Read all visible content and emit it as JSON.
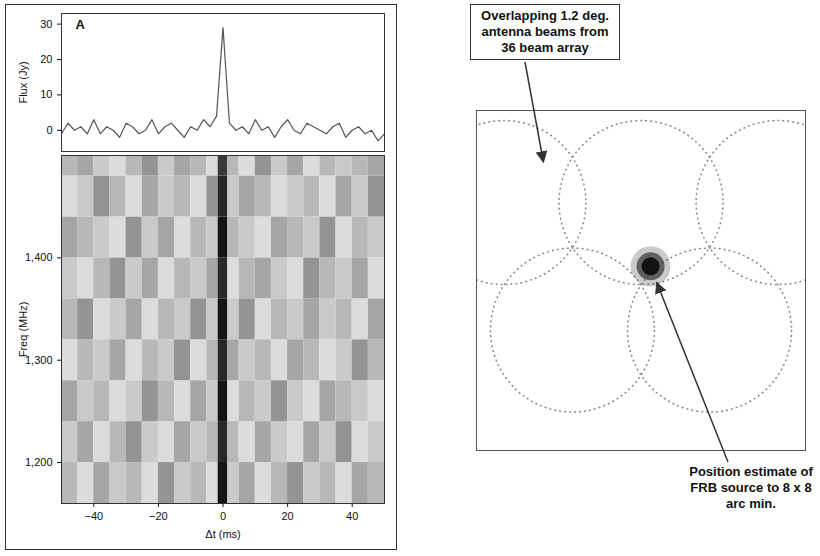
{
  "chart_data": [
    {
      "type": "line",
      "panel": "A",
      "y_label": "Flux (Jy)",
      "x": [
        -50,
        -48,
        -46,
        -44,
        -42,
        -40,
        -38,
        -36,
        -34,
        -32,
        -30,
        -28,
        -26,
        -24,
        -22,
        -20,
        -18,
        -16,
        -14,
        -12,
        -10,
        -8,
        -6,
        -4,
        -2,
        0,
        2,
        4,
        6,
        8,
        10,
        12,
        14,
        16,
        18,
        20,
        22,
        24,
        26,
        28,
        30,
        32,
        34,
        36,
        38,
        40,
        42,
        44,
        46,
        48,
        50
      ],
      "values": [
        -1,
        2,
        0,
        1,
        -1,
        3,
        -1,
        1,
        0,
        -2,
        2,
        1,
        -1,
        0,
        3,
        -1,
        1,
        2,
        0,
        -2,
        1,
        0,
        3,
        1,
        4,
        29,
        2,
        0,
        1,
        -1,
        3,
        0,
        1,
        -2,
        1,
        3,
        0,
        -1,
        2,
        1,
        0,
        -1,
        1,
        2,
        -2,
        0,
        1,
        -1,
        0,
        -3,
        -1
      ],
      "xlim": [
        -50,
        50
      ],
      "ylim": [
        -6,
        33
      ],
      "yticks": [
        0,
        10,
        20,
        30
      ],
      "tick_labels": "y",
      "color": "#555555"
    },
    {
      "type": "heatmap",
      "x_label": "Δt (ms)",
      "y_label": "Freq (MHz)",
      "x_bins": [
        -50,
        -45,
        -40,
        -35,
        -30,
        -25,
        -20,
        -15,
        -10,
        -5,
        -1.5,
        1.5,
        5,
        10,
        15,
        20,
        25,
        30,
        35,
        40,
        45,
        50
      ],
      "y_bins": [
        1160,
        1200,
        1240,
        1280,
        1320,
        1360,
        1400,
        1440,
        1480,
        1500
      ],
      "cells": [
        [
          0.5,
          0.4,
          0.55,
          0.45,
          0.5,
          0.4,
          0.6,
          0.45,
          0.5,
          0.4,
          0.95,
          0.45,
          0.55,
          0.4,
          0.5,
          0.6,
          0.45,
          0.5,
          0.4,
          0.55,
          0.5
        ],
        [
          0.45,
          0.55,
          0.4,
          0.5,
          0.6,
          0.45,
          0.4,
          0.55,
          0.45,
          0.5,
          0.9,
          0.5,
          0.4,
          0.55,
          0.45,
          0.4,
          0.55,
          0.45,
          0.6,
          0.4,
          0.45
        ],
        [
          0.55,
          0.45,
          0.5,
          0.4,
          0.45,
          0.6,
          0.5,
          0.4,
          0.55,
          0.45,
          0.95,
          0.4,
          0.5,
          0.45,
          0.6,
          0.45,
          0.4,
          0.55,
          0.5,
          0.45,
          0.4
        ],
        [
          0.4,
          0.5,
          0.45,
          0.55,
          0.4,
          0.5,
          0.45,
          0.6,
          0.4,
          0.5,
          0.9,
          0.55,
          0.45,
          0.5,
          0.4,
          0.55,
          0.5,
          0.4,
          0.45,
          0.6,
          0.5
        ],
        [
          0.5,
          0.6,
          0.4,
          0.45,
          0.55,
          0.4,
          0.5,
          0.45,
          0.6,
          0.45,
          0.95,
          0.45,
          0.6,
          0.4,
          0.5,
          0.45,
          0.55,
          0.45,
          0.5,
          0.4,
          0.55
        ],
        [
          0.45,
          0.4,
          0.5,
          0.6,
          0.45,
          0.55,
          0.4,
          0.5,
          0.45,
          0.55,
          0.9,
          0.4,
          0.5,
          0.55,
          0.45,
          0.4,
          0.6,
          0.5,
          0.45,
          0.55,
          0.4
        ],
        [
          0.55,
          0.5,
          0.45,
          0.4,
          0.6,
          0.45,
          0.55,
          0.4,
          0.5,
          0.45,
          0.95,
          0.5,
          0.45,
          0.4,
          0.55,
          0.5,
          0.45,
          0.6,
          0.4,
          0.5,
          0.45
        ],
        [
          0.4,
          0.45,
          0.6,
          0.5,
          0.4,
          0.55,
          0.45,
          0.5,
          0.4,
          0.6,
          0.9,
          0.45,
          0.55,
          0.5,
          0.4,
          0.45,
          0.5,
          0.4,
          0.55,
          0.45,
          0.6
        ],
        [
          0.5,
          0.55,
          0.45,
          0.4,
          0.5,
          0.6,
          0.45,
          0.55,
          0.5,
          0.4,
          0.85,
          0.5,
          0.4,
          0.6,
          0.45,
          0.55,
          0.4,
          0.5,
          0.45,
          0.5,
          0.55
        ]
      ],
      "xlim": [
        -50,
        50
      ],
      "ylim": [
        1160,
        1500
      ],
      "xticks": [
        -40,
        -20,
        0,
        20,
        40
      ],
      "yticks": [
        1200,
        1300,
        1400
      ]
    },
    {
      "type": "map",
      "beams": {
        "x": [
          -1.0,
          0,
          1.0,
          -0.5,
          0.5
        ],
        "y": [
          0.55,
          0.55,
          0.55,
          -0.35,
          -0.35
        ]
      },
      "source": {
        "x": 0.07,
        "y": 0.1
      },
      "xlim": [
        -1.2,
        1.2
      ],
      "ylim": [
        -1.2,
        1.2
      ],
      "tick_labels": false,
      "annotations": [
        "Overlapping 1.2 deg. antenna beams from 36 beam array",
        "Position estimate of FRB source to 8 x 8 arc min."
      ]
    }
  ]
}
